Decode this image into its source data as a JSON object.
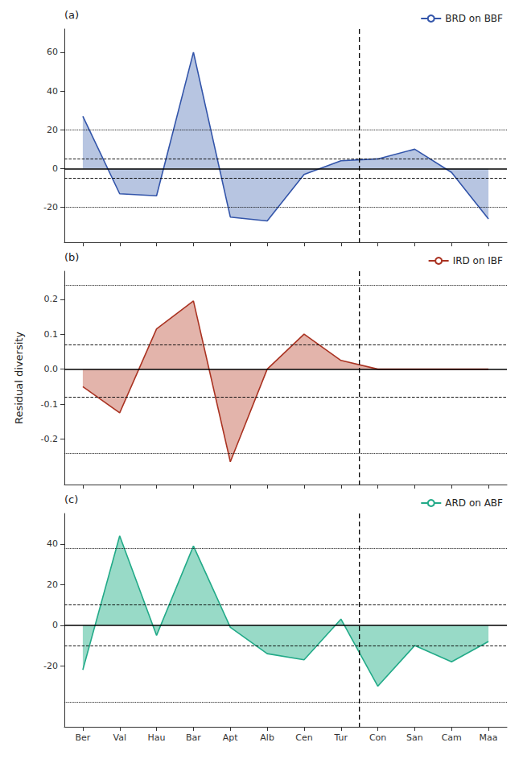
{
  "chart_data": [
    {
      "type": "line",
      "annotation": "(a)",
      "categories": [
        "Ber",
        "Val",
        "Hau",
        "Bar",
        "Apt",
        "Alb",
        "Cen",
        "Tur",
        "Con",
        "San",
        "Cam",
        "Maa"
      ],
      "series": [
        {
          "name": "BRD on BBF",
          "color": "#3355aa",
          "fill_color": "#7b96c8",
          "values": [
            27,
            -13,
            -14,
            60,
            -25,
            -27,
            -3,
            4,
            5,
            10,
            -2,
            -26
          ]
        }
      ],
      "ylim": [
        -38,
        72
      ],
      "yticks": [
        -20,
        0,
        20,
        40,
        60
      ],
      "hlines": [
        {
          "value": 20,
          "line_style": "dotted"
        },
        {
          "value": -20,
          "line_style": "dotted"
        },
        {
          "value": 5,
          "line_style": "dashed"
        },
        {
          "value": -5,
          "line_style": "dashed"
        },
        {
          "value": 0,
          "line_style": "solid"
        }
      ],
      "vline": {
        "between": [
          "Tur",
          "Con"
        ],
        "line_style": "dashed"
      },
      "legend": "upper right",
      "grid": false,
      "tick_labels": "y"
    },
    {
      "type": "line",
      "annotation": "(b)",
      "ylabel": "Residual diversity",
      "categories": [
        "Ber",
        "Val",
        "Hau",
        "Bar",
        "Apt",
        "Alb",
        "Cen",
        "Tur",
        "Con",
        "San",
        "Cam",
        "Maa"
      ],
      "series": [
        {
          "name": "IRD on IBF",
          "color": "#aa3322",
          "fill_color": "#cc7766",
          "values": [
            -0.05,
            -0.125,
            0.115,
            0.195,
            -0.265,
            0.0,
            0.1,
            0.025,
            0.0,
            0.0,
            0.0,
            0.0
          ]
        }
      ],
      "ylim": [
        -0.33,
        0.28
      ],
      "yticks": [
        -0.2,
        -0.1,
        {
          "value": 0,
          "label": "0.0"
        },
        0.1,
        0.2
      ],
      "hlines": [
        {
          "value": 0.24,
          "line_style": "dotted"
        },
        {
          "value": -0.24,
          "line_style": "dotted"
        },
        {
          "value": 0.075,
          "line_style": "dashed"
        },
        {
          "value": -0.08,
          "line_style": "dashed"
        },
        {
          "value": 0.0,
          "line_style": "solid"
        }
      ],
      "vline": {
        "between": [
          "Tur",
          "Con"
        ],
        "line_style": "dashed"
      },
      "legend": "upper right",
      "grid": false,
      "tick_labels": "y"
    },
    {
      "type": "line",
      "annotation": "(c)",
      "categories": [
        "Ber",
        "Val",
        "Hau",
        "Bar",
        "Apt",
        "Alb",
        "Cen",
        "Tur",
        "Con",
        "San",
        "Cam",
        "Maa"
      ],
      "series": [
        {
          "name": "ARD on ABF",
          "color": "#22aa88",
          "fill_color": "#44bb99",
          "values": [
            -22,
            44,
            -5,
            39,
            -1,
            -14,
            -17,
            3,
            -30,
            -10,
            -18,
            -8
          ]
        }
      ],
      "ylim": [
        -50,
        55
      ],
      "yticks": [
        -20,
        0,
        20,
        40
      ],
      "hlines": [
        {
          "value": 38,
          "line_style": "dotted"
        },
        {
          "value": -38,
          "line_style": "dotted"
        },
        {
          "value": 10,
          "line_style": "dashed"
        },
        {
          "value": -10,
          "line_style": "dashed"
        },
        {
          "value": 0,
          "line_style": "solid"
        }
      ],
      "vline": {
        "between": [
          "Tur",
          "Con"
        ],
        "line_style": "dashed"
      },
      "legend": "upper right",
      "grid": false
    }
  ]
}
